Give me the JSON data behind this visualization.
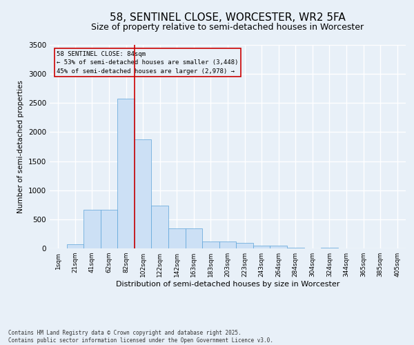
{
  "title1": "58, SENTINEL CLOSE, WORCESTER, WR2 5FA",
  "title2": "Size of property relative to semi-detached houses in Worcester",
  "xlabel": "Distribution of semi-detached houses by size in Worcester",
  "ylabel": "Number of semi-detached properties",
  "footnote": "Contains HM Land Registry data © Crown copyright and database right 2025.\nContains public sector information licensed under the Open Government Licence v3.0.",
  "bins": [
    "1sqm",
    "21sqm",
    "41sqm",
    "62sqm",
    "82sqm",
    "102sqm",
    "122sqm",
    "142sqm",
    "163sqm",
    "183sqm",
    "203sqm",
    "223sqm",
    "243sqm",
    "264sqm",
    "284sqm",
    "304sqm",
    "324sqm",
    "344sqm",
    "365sqm",
    "385sqm",
    "405sqm"
  ],
  "values": [
    5,
    75,
    660,
    660,
    2570,
    1880,
    740,
    350,
    340,
    120,
    120,
    90,
    50,
    50,
    10,
    0,
    10,
    0,
    0,
    0,
    0
  ],
  "ylim": [
    0,
    3500
  ],
  "yticks": [
    0,
    500,
    1000,
    1500,
    2000,
    2500,
    3000,
    3500
  ],
  "bar_color": "#cce0f5",
  "bar_edge_color": "#5ba3d9",
  "vline_x": 4.5,
  "vline_color": "#cc0000",
  "annotation_title": "58 SENTINEL CLOSE: 84sqm",
  "annotation_line1": "← 53% of semi-detached houses are smaller (3,448)",
  "annotation_line2": "45% of semi-detached houses are larger (2,978) →",
  "annotation_box_color": "#cc0000",
  "bg_color": "#e8f0f8",
  "grid_color": "#ffffff",
  "title_fontsize": 11,
  "subtitle_fontsize": 9
}
